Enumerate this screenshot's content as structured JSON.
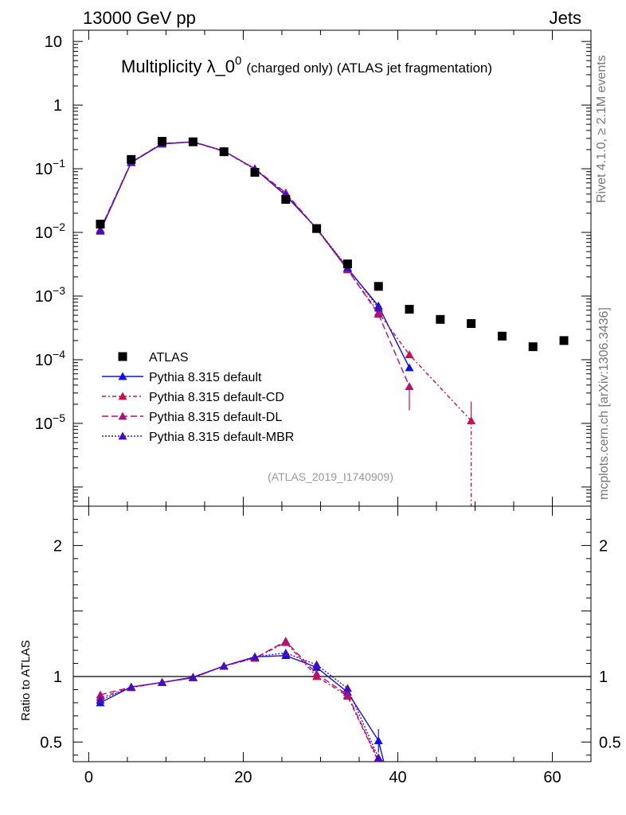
{
  "header": {
    "left": "13000 GeV pp",
    "right": "Jets"
  },
  "side_labels": {
    "rivet": "Rivet 4.1.0, ≥ 2.1M events",
    "mcplots": "mcplots.cern.ch [arXiv:1306.3436]"
  },
  "chart_data": {
    "type": "scatter",
    "title": "Multiplicity λ_0",
    "title_sup": "0",
    "title_suffix": "(charged only) (ATLAS jet fragmentation)",
    "analysis_id": "(ATLAS_2019_I1740909)",
    "xlabel": "",
    "xlim": [
      -2,
      65
    ],
    "x_ticks": [
      "0",
      "20",
      "40",
      "60"
    ],
    "x_tick_values": [
      0,
      20,
      40,
      60
    ],
    "main": {
      "ylabel": "",
      "yscale": "log",
      "ylim": [
        5e-07,
        15
      ],
      "y_tick_labels": [
        {
          "value": 10,
          "label": "10"
        },
        {
          "value": 1,
          "label": "1"
        },
        {
          "value": 0.1,
          "label": "10",
          "exp": "−1"
        },
        {
          "value": 0.01,
          "label": "10",
          "exp": "−2"
        },
        {
          "value": 0.001,
          "label": "10",
          "exp": "−3"
        },
        {
          "value": 0.0001,
          "label": "10",
          "exp": "−4"
        },
        {
          "value": 1e-05,
          "label": "10",
          "exp": "−5"
        }
      ]
    },
    "ratio": {
      "ylabel": "Ratio to ATLAS",
      "ylim": [
        0.35,
        2.3
      ],
      "y_tick_labels": [
        {
          "value": 2,
          "label": "2"
        },
        {
          "value": 1,
          "label": "1"
        },
        {
          "value": 0.5,
          "label": "0.5"
        }
      ]
    },
    "x": [
      1.5,
      5.5,
      9.5,
      13.5,
      17.5,
      21.5,
      25.5,
      29.5,
      33.5,
      37.5,
      41.5,
      45.5,
      49.5,
      53.5,
      57.5,
      61.5
    ],
    "series": [
      {
        "name": "ATLAS",
        "kind": "data",
        "color": "#000000",
        "marker": "square",
        "values": [
          0.0135,
          0.14,
          0.27,
          0.265,
          0.185,
          0.088,
          0.033,
          0.0115,
          0.0032,
          0.00142,
          0.00062,
          0.00043,
          0.00037,
          0.000235,
          0.00016,
          0.0002
        ]
      },
      {
        "name": "Pythia 8.315 default",
        "kind": "mc",
        "color": "#1010e0",
        "dash": "",
        "marker": "triangle",
        "values": [
          0.0105,
          0.125,
          0.245,
          0.265,
          0.19,
          0.1,
          0.038,
          0.0115,
          0.0027,
          0.0007,
          7.5e-05,
          null,
          null,
          null,
          null,
          null
        ],
        "ratio": [
          0.8,
          0.92,
          0.955,
          0.995,
          1.08,
          1.15,
          1.16,
          1.07,
          0.88,
          0.51,
          null,
          null,
          null,
          null,
          null,
          null
        ]
      },
      {
        "name": "Pythia 8.315 default-CD",
        "kind": "mc",
        "color": "#c8104a",
        "dash": "5,3,2,3",
        "marker": "triangle",
        "values": [
          0.011,
          0.126,
          0.248,
          0.262,
          0.188,
          0.098,
          0.041,
          0.0113,
          0.0026,
          0.00055,
          0.00012,
          null,
          1.1e-05,
          null,
          null,
          null
        ],
        "ratio": [
          0.84,
          0.915,
          0.955,
          0.99,
          1.08,
          1.14,
          1.26,
          1.0,
          0.85,
          0.35,
          null,
          null,
          null,
          null,
          null,
          null
        ]
      },
      {
        "name": "Pythia 8.315 default-DL",
        "kind": "mc",
        "color": "#b0107a",
        "dash": "8,4",
        "marker": "triangle",
        "values": [
          0.0112,
          0.127,
          0.25,
          0.264,
          0.19,
          0.1,
          0.042,
          0.0114,
          0.0026,
          0.00052,
          3.8e-05,
          null,
          null,
          null,
          null,
          null
        ],
        "ratio": [
          0.86,
          0.92,
          0.955,
          0.99,
          1.08,
          1.14,
          1.27,
          1.02,
          0.86,
          0.36,
          null,
          null,
          null,
          null,
          null,
          null
        ]
      },
      {
        "name": "Pythia 8.315 default-MBR",
        "kind": "mc",
        "color": "#4010c0",
        "dash": "2,2",
        "marker": "triangle",
        "values": [
          0.0106,
          0.126,
          0.248,
          0.265,
          0.19,
          0.1,
          0.039,
          0.0116,
          0.0028,
          0.00065,
          null,
          null,
          null,
          null,
          null,
          null
        ],
        "ratio": [
          0.82,
          0.92,
          0.955,
          0.995,
          1.08,
          1.15,
          1.18,
          1.09,
          0.91,
          0.38,
          null,
          null,
          null,
          null,
          null,
          null
        ]
      }
    ]
  }
}
